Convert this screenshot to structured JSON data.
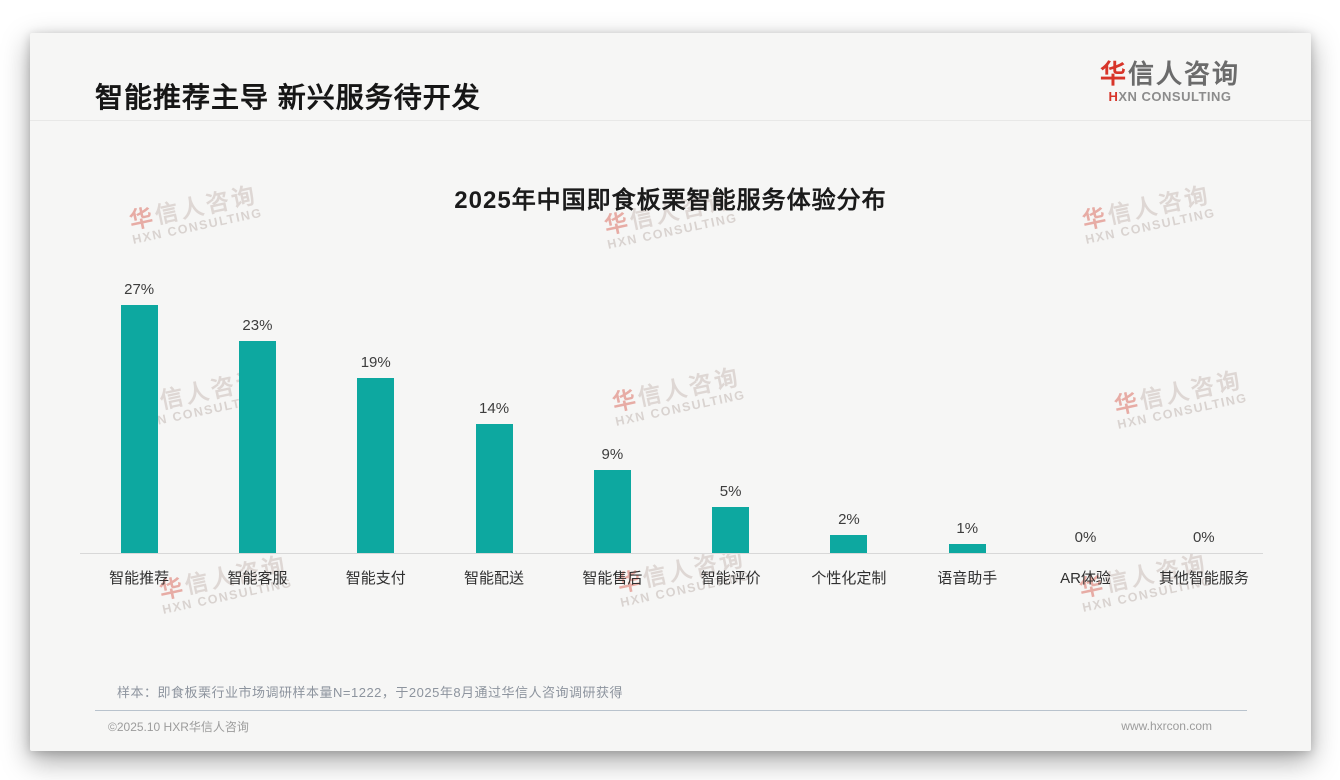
{
  "page": {
    "header_title": "智能推荐主导 新兴服务待开发",
    "logo": {
      "cn_first": "华",
      "cn_rest": "信人咨询",
      "en_first": "H",
      "en_rest": "XN CONSULTING"
    },
    "watermark": {
      "cn_first": "华",
      "cn_rest": "信人咨询",
      "en": "HXN CONSULTING"
    },
    "sample_note": "样本：即食板栗行业市场调研样本量N=1222，于2025年8月通过华信人咨询调研获得",
    "footer_left": "©2025.10 HXR华信人咨询",
    "footer_right": "www.hxrcon.com"
  },
  "colors": {
    "bar": "#0da8a0",
    "logo_red": "#d8352a"
  },
  "chart_data": {
    "type": "bar",
    "title": "2025年中国即食板栗智能服务体验分布",
    "categories": [
      "智能推荐",
      "智能客服",
      "智能支付",
      "智能配送",
      "智能售后",
      "智能评价",
      "个性化定制",
      "语音助手",
      "AR体验",
      "其他智能服务"
    ],
    "values": [
      27,
      23,
      19,
      14,
      9,
      5,
      2,
      1,
      0,
      0
    ],
    "value_labels": [
      "27%",
      "23%",
      "19%",
      "14%",
      "9%",
      "5%",
      "2%",
      "1%",
      "0%",
      "0%"
    ],
    "ylabel": "",
    "xlabel": "",
    "ylim": [
      0,
      30
    ],
    "grid": false,
    "legend": "none",
    "bar_color": "#0da8a0"
  }
}
